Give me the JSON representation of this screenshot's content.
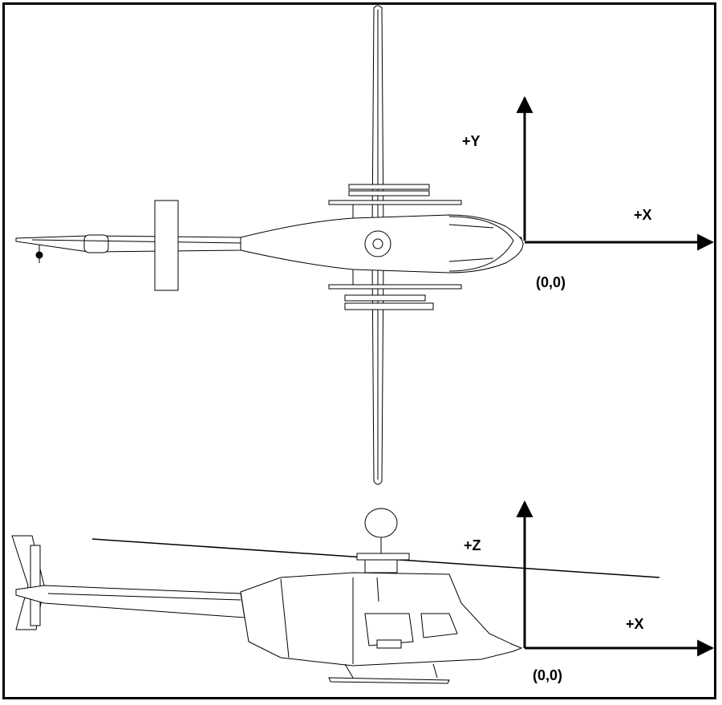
{
  "top_view": {
    "axis_x_label": "+X",
    "axis_y_label": "+Y",
    "origin_label": "(0,0)"
  },
  "side_view": {
    "axis_x_label": "+X",
    "axis_z_label": "+Z",
    "origin_label": "(0,0)"
  },
  "colors": {
    "line": "#000000",
    "background": "#ffffff"
  }
}
